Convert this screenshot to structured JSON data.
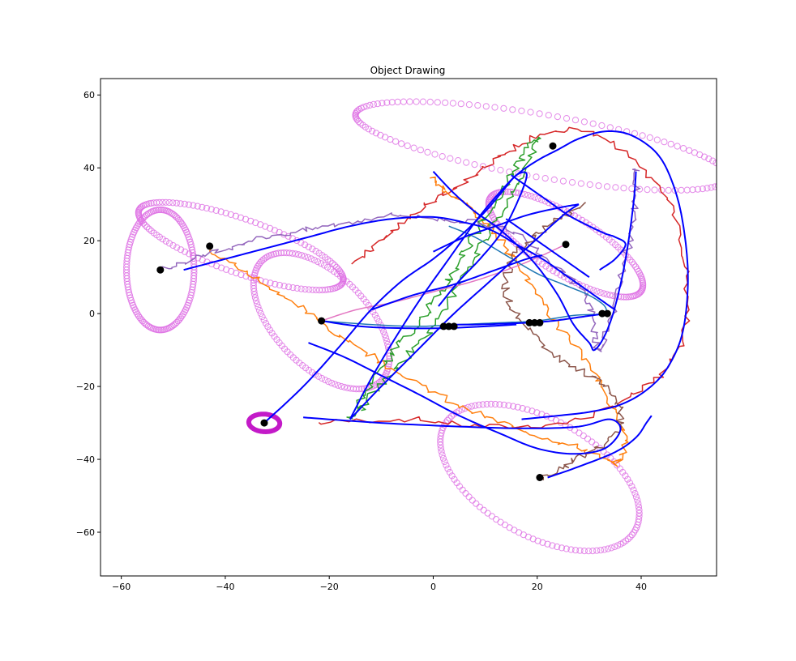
{
  "chart_data": {
    "type": "line",
    "title": "Object Drawing",
    "xlabel": "",
    "ylabel": "",
    "xlim": [
      -64,
      54.5
    ],
    "ylim": [
      -72,
      64.5
    ],
    "xticks": [
      -60,
      -40,
      -20,
      0,
      20,
      40
    ],
    "yticks": [
      -60,
      -40,
      -20,
      0,
      20,
      40,
      60
    ],
    "grid": false,
    "legend": "none",
    "series": [
      {
        "kind": "ellipse",
        "style": "hollow-dots",
        "color": "#dd6ee3",
        "cx": -52.5,
        "cy": 12,
        "rx": 6.5,
        "ry": 16.5,
        "rot": 0
      },
      {
        "kind": "ellipse",
        "style": "hollow-dots",
        "color": "#dd6ee3",
        "cx": -37,
        "cy": 18.5,
        "rx": 22,
        "ry": 7,
        "rot": -28
      },
      {
        "kind": "ellipse",
        "style": "hollow-dots",
        "color": "#dd6ee3",
        "cx": -21.5,
        "cy": -2,
        "rx": 20.5,
        "ry": 10,
        "rot": -62
      },
      {
        "kind": "ellipse",
        "style": "hollow-dots",
        "color": "#dd6ee3",
        "cx": 21,
        "cy": 46,
        "rx": 37,
        "ry": 8.5,
        "rot": -14
      },
      {
        "kind": "ellipse",
        "style": "hollow-dots",
        "color": "#dd6ee3",
        "cx": 25.5,
        "cy": 19,
        "rx": 19.5,
        "ry": 7,
        "rot": -44
      },
      {
        "kind": "ellipse",
        "style": "hollow-dots",
        "color": "#dd6ee3",
        "cx": 20.5,
        "cy": -45,
        "rx": 24,
        "ry": 14,
        "rot": -48
      },
      {
        "kind": "ellipse",
        "style": "thick",
        "color": "#c31ac8",
        "cx": -32.5,
        "cy": -30,
        "rx": 3,
        "ry": 2.4,
        "rot": -10
      },
      {
        "kind": "curve",
        "style": "jagged",
        "color": "#d62728",
        "points": [
          [
            -22,
            -30
          ],
          [
            -5,
            -29
          ],
          [
            10,
            -31
          ],
          [
            25,
            -30
          ],
          [
            35,
            -25
          ],
          [
            43,
            -18
          ],
          [
            48,
            -7
          ],
          [
            49,
            8
          ],
          [
            47,
            25
          ],
          [
            41,
            38
          ],
          [
            32,
            49
          ],
          [
            23,
            50
          ],
          [
            16,
            46
          ],
          [
            10,
            40
          ],
          [
            5,
            35
          ],
          [
            0,
            31
          ],
          [
            -5,
            26
          ],
          [
            -10,
            20
          ],
          [
            -15,
            14
          ]
        ]
      },
      {
        "kind": "curve",
        "style": "jagged",
        "color": "#ff7f0e",
        "points": [
          [
            -43,
            18
          ],
          [
            -38,
            13
          ],
          [
            -32,
            8
          ],
          [
            -25,
            1
          ],
          [
            -18,
            -6
          ],
          [
            -10,
            -13
          ],
          [
            -2,
            -20
          ],
          [
            6,
            -26
          ],
          [
            15,
            -31
          ],
          [
            24,
            -35
          ],
          [
            30,
            -38
          ],
          [
            35,
            -41
          ],
          [
            37,
            -34
          ],
          [
            34,
            -24
          ],
          [
            30,
            -14
          ],
          [
            25,
            -5
          ],
          [
            20,
            5
          ],
          [
            16,
            14
          ],
          [
            12,
            22
          ],
          [
            8,
            28
          ],
          [
            3,
            33
          ],
          [
            0,
            37
          ]
        ]
      },
      {
        "kind": "curve",
        "style": "jagged",
        "color": "#2ca02c",
        "points": [
          [
            -16,
            -29
          ],
          [
            -13,
            -22
          ],
          [
            -9,
            -13
          ],
          [
            -5,
            -6
          ],
          [
            -1,
            1
          ],
          [
            3,
            9
          ],
          [
            6,
            17
          ],
          [
            9,
            24
          ],
          [
            12,
            31
          ],
          [
            15,
            38
          ],
          [
            18,
            45
          ],
          [
            20,
            48
          ],
          [
            17,
            38
          ],
          [
            13,
            28
          ],
          [
            9,
            18
          ],
          [
            5,
            8
          ],
          [
            1,
            -2
          ],
          [
            -4,
            -10
          ],
          [
            -9,
            -18
          ],
          [
            -14,
            -26
          ]
        ]
      },
      {
        "kind": "curve",
        "style": "jagged",
        "color": "#9467bd",
        "points": [
          [
            -52,
            12
          ],
          [
            -46,
            15
          ],
          [
            -40,
            18
          ],
          [
            -32,
            21
          ],
          [
            -24,
            23
          ],
          [
            -16,
            25
          ],
          [
            -8,
            27
          ],
          [
            0,
            26
          ],
          [
            8,
            25
          ],
          [
            16,
            22
          ],
          [
            22,
            15
          ],
          [
            27,
            9
          ],
          [
            30,
            2
          ],
          [
            31,
            -5
          ],
          [
            32,
            -10
          ],
          [
            34,
            -2
          ],
          [
            36,
            10
          ],
          [
            38,
            22
          ],
          [
            39,
            32
          ],
          [
            39,
            40
          ]
        ]
      },
      {
        "kind": "curve",
        "style": "jagged",
        "color": "#8c564b",
        "points": [
          [
            20.5,
            -46
          ],
          [
            25,
            -42
          ],
          [
            30,
            -38
          ],
          [
            35,
            -33
          ],
          [
            36,
            -26
          ],
          [
            33,
            -20
          ],
          [
            28,
            -15
          ],
          [
            22,
            -10
          ],
          [
            17,
            -2
          ],
          [
            14,
            6
          ],
          [
            15,
            14
          ],
          [
            19,
            21
          ],
          [
            24,
            26
          ],
          [
            29,
            30
          ]
        ]
      },
      {
        "kind": "curve",
        "style": "smooth",
        "color": "#e377c2",
        "points": [
          [
            -21.5,
            -2
          ],
          [
            -15,
            1
          ],
          [
            -8,
            3
          ],
          [
            0,
            6
          ],
          [
            8,
            9
          ],
          [
            16,
            13
          ],
          [
            21,
            16
          ],
          [
            25.5,
            19
          ]
        ]
      },
      {
        "kind": "curve",
        "style": "smooth",
        "color": "#1f77b4",
        "points": [
          [
            -21.5,
            -2
          ],
          [
            -12,
            -3
          ],
          [
            -3,
            -3.5
          ],
          [
            5,
            -3
          ],
          [
            13,
            -2.5
          ],
          [
            20,
            -2
          ],
          [
            27,
            -0.5
          ],
          [
            32.5,
            0
          ],
          [
            33,
            2
          ],
          [
            30,
            5
          ],
          [
            25,
            8
          ],
          [
            20,
            11
          ],
          [
            14,
            16
          ],
          [
            8,
            21
          ],
          [
            3,
            24
          ]
        ]
      },
      {
        "kind": "curve",
        "style": "fit",
        "color": "#0000ff",
        "points": [
          [
            -32.5,
            -30
          ],
          [
            -25,
            -20
          ],
          [
            -18,
            -9
          ],
          [
            -12,
            1
          ],
          [
            -6,
            9
          ],
          [
            0,
            15
          ],
          [
            5,
            21
          ],
          [
            10,
            28
          ],
          [
            13,
            33
          ],
          [
            16,
            38
          ],
          [
            18,
            38
          ],
          [
            16,
            30
          ],
          [
            13,
            22
          ],
          [
            9,
            15
          ],
          [
            5,
            9
          ],
          [
            1,
            2
          ]
        ]
      },
      {
        "kind": "curve",
        "style": "fit",
        "color": "#0000ff",
        "points": [
          [
            -48,
            12
          ],
          [
            -40,
            15
          ],
          [
            -32,
            18
          ],
          [
            -24,
            21
          ],
          [
            -16,
            24
          ],
          [
            -8,
            26
          ],
          [
            0,
            26.5
          ],
          [
            6,
            25
          ],
          [
            11,
            23
          ],
          [
            16,
            19
          ],
          [
            21,
            15
          ],
          [
            26,
            10
          ],
          [
            30,
            6
          ],
          [
            33,
            3
          ],
          [
            35,
            1
          ]
        ]
      },
      {
        "kind": "curve",
        "style": "fit",
        "color": "#0000ff",
        "points": [
          [
            -25,
            -28.5
          ],
          [
            -10,
            -30
          ],
          [
            5,
            -31
          ],
          [
            18,
            -31.5
          ],
          [
            28,
            -31
          ],
          [
            34,
            -29
          ],
          [
            36,
            -32
          ],
          [
            33,
            -37
          ],
          [
            27,
            -38.5
          ],
          [
            20,
            -37
          ],
          [
            13,
            -33
          ],
          [
            5,
            -28
          ],
          [
            -3,
            -22
          ],
          [
            -10,
            -17
          ],
          [
            -17,
            -12
          ],
          [
            -24,
            -8
          ]
        ]
      },
      {
        "kind": "curve",
        "style": "fit",
        "color": "#0000ff",
        "points": [
          [
            22,
            -45
          ],
          [
            28,
            -42
          ],
          [
            35,
            -38
          ],
          [
            39,
            -34
          ],
          [
            41,
            -30
          ],
          [
            42,
            -28
          ]
        ]
      },
      {
        "kind": "curve",
        "style": "fit",
        "color": "#0000ff",
        "points": [
          [
            -16,
            -29
          ],
          [
            -12,
            -18
          ],
          [
            -7,
            -6
          ],
          [
            -2,
            5
          ],
          [
            3,
            15
          ],
          [
            8,
            25
          ],
          [
            12,
            32
          ],
          [
            16,
            38
          ],
          [
            20,
            42
          ],
          [
            24,
            45
          ],
          [
            28,
            48
          ],
          [
            33,
            50
          ],
          [
            38,
            49
          ],
          [
            43,
            44
          ],
          [
            46,
            36
          ],
          [
            48,
            25
          ],
          [
            49,
            10
          ],
          [
            48,
            -5
          ],
          [
            45,
            -15
          ],
          [
            41,
            -21
          ],
          [
            36,
            -25
          ],
          [
            30,
            -27
          ],
          [
            24,
            -28
          ],
          [
            17,
            -29
          ]
        ]
      },
      {
        "kind": "curve",
        "style": "fit",
        "color": "#0000ff",
        "points": [
          [
            0,
            39
          ],
          [
            4,
            33
          ],
          [
            8,
            28
          ],
          [
            12,
            24
          ],
          [
            16,
            19
          ],
          [
            20,
            13
          ],
          [
            24,
            5
          ],
          [
            27,
            -3
          ],
          [
            30,
            -8
          ],
          [
            31,
            -10
          ],
          [
            33,
            -6
          ],
          [
            35,
            2
          ],
          [
            37,
            15
          ],
          [
            38.5,
            30
          ],
          [
            39,
            39
          ]
        ]
      },
      {
        "kind": "curve",
        "style": "fit",
        "color": "#0000ff",
        "points": [
          [
            -16,
            -29
          ],
          [
            -10,
            -20
          ],
          [
            -3,
            -10
          ],
          [
            4,
            0
          ],
          [
            11,
            9
          ],
          [
            18,
            18
          ],
          [
            25,
            27
          ],
          [
            28,
            30
          ]
        ]
      },
      {
        "kind": "curve",
        "style": "fit",
        "color": "#0000ff",
        "points": [
          [
            0,
            17
          ],
          [
            6,
            21
          ],
          [
            12,
            24
          ],
          [
            18,
            27
          ],
          [
            24,
            29
          ],
          [
            28,
            30
          ]
        ]
      },
      {
        "kind": "curve",
        "style": "fit",
        "color": "#0000ff",
        "points": [
          [
            -12,
            1
          ],
          [
            -4,
            5
          ],
          [
            4,
            8
          ],
          [
            12,
            12
          ],
          [
            18,
            15
          ],
          [
            21,
            16
          ]
        ]
      },
      {
        "kind": "curve",
        "style": "fit",
        "color": "#0000ff",
        "points": [
          [
            3,
            -3
          ],
          [
            8,
            -3
          ],
          [
            13,
            -2.8
          ],
          [
            18,
            -2.5
          ],
          [
            23,
            -2
          ],
          [
            28,
            -1
          ],
          [
            33,
            0
          ]
        ]
      },
      {
        "kind": "curve",
        "style": "fit",
        "color": "#0000ff",
        "points": [
          [
            -21.5,
            -2
          ],
          [
            -14,
            -3.5
          ],
          [
            -6,
            -4
          ],
          [
            2,
            -4
          ],
          [
            10,
            -3.5
          ],
          [
            16,
            -3
          ]
        ]
      },
      {
        "kind": "curve",
        "style": "fit",
        "color": "#0000ff",
        "points": [
          [
            15,
            38
          ],
          [
            18,
            35
          ],
          [
            22,
            31
          ],
          [
            26,
            27
          ],
          [
            30,
            24
          ],
          [
            33,
            22
          ],
          [
            35,
            21
          ],
          [
            37,
            19
          ],
          [
            35,
            15
          ],
          [
            32,
            12
          ]
        ]
      },
      {
        "kind": "curve",
        "style": "fit",
        "color": "#0000ff",
        "points": [
          [
            14,
            26
          ],
          [
            18,
            22
          ],
          [
            22,
            18
          ],
          [
            25,
            15
          ],
          [
            28,
            12
          ],
          [
            30,
            10
          ]
        ]
      },
      {
        "kind": "points",
        "style": "black-dot",
        "color": "#000000",
        "points": [
          [
            -52.5,
            12
          ],
          [
            -43,
            18.5
          ],
          [
            -21.5,
            -2
          ],
          [
            -32.5,
            -30
          ],
          [
            23,
            46
          ],
          [
            25.5,
            19
          ],
          [
            20.5,
            -45
          ],
          [
            2,
            -3.5
          ],
          [
            3,
            -3.5
          ],
          [
            4,
            -3.5
          ],
          [
            18.5,
            -2.5
          ],
          [
            19.5,
            -2.5
          ],
          [
            20.5,
            -2.5
          ],
          [
            32.5,
            0
          ],
          [
            33.5,
            0
          ]
        ]
      }
    ]
  }
}
